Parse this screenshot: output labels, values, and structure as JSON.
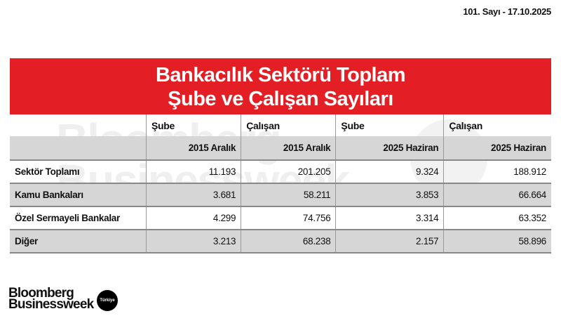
{
  "issue": "101. Sayı - 17.10.2025",
  "title_line1": "Bankacılık Sektörü Toplam",
  "title_line2": "Şube ve Çalışan Sayıları",
  "header_row1": [
    "",
    "Şube",
    "Çalışan",
    "Şube",
    "Çalışan"
  ],
  "header_row2": [
    "",
    "2015 Aralık",
    "2015 Aralık",
    "2025 Haziran",
    "2025 Haziran"
  ],
  "rows": [
    [
      "Sektör Toplamı",
      "11.193",
      "201.205",
      "9.324",
      "188.912"
    ],
    [
      "Kamu Bankaları",
      "3.681",
      "58.211",
      "3.853",
      "66.664"
    ],
    [
      "Özel Sermayeli Bankalar",
      "4.299",
      "74.756",
      "3.314",
      "63.352"
    ],
    [
      "Diğer",
      "3.213",
      "68.238",
      "2.157",
      "58.896"
    ]
  ],
  "logo": {
    "line1": "Bloomberg",
    "line2": "Businessweek",
    "badge": "Türkiye"
  },
  "colors": {
    "banner": "#e31e24",
    "stripe": "#d6d6d6"
  }
}
